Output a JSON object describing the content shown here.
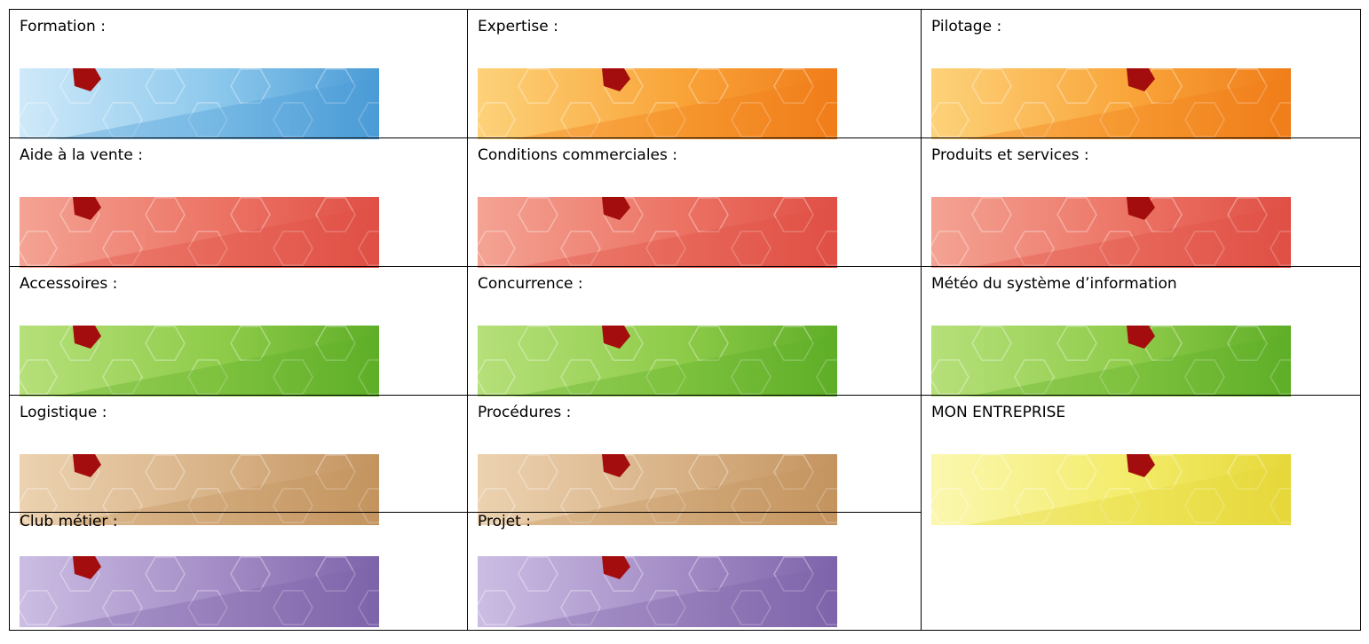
{
  "table": {
    "rows": [
      [
        "Formation :",
        "Expertise :",
        "Pilotage :"
      ],
      [
        "Aide à la vente :",
        "Conditions commerciales :",
        "Produits et services :"
      ],
      [
        "Accessoires :",
        "Concurrence :",
        "Météo du système d’information"
      ],
      [
        "Logistique :",
        "Procédures :",
        "MON ENTREPRISE"
      ],
      [
        "Club métier :",
        "Projet :"
      ]
    ]
  }
}
